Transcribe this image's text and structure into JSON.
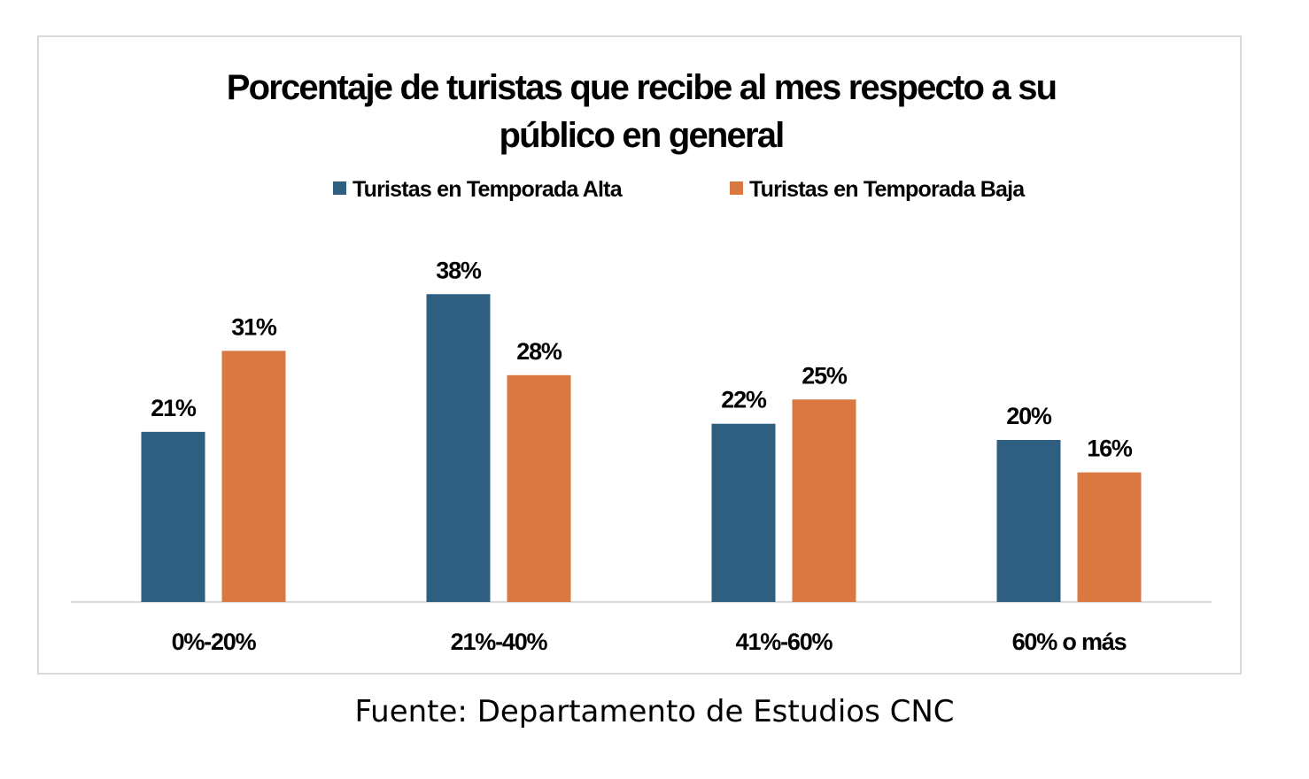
{
  "chart_data": {
    "type": "bar",
    "title_lines": [
      "Porcentaje de turistas que recibe al mes respecto a su",
      "público en general"
    ],
    "categories": [
      "0%-20%",
      "21%-40%",
      "41%-60%",
      "60% o más"
    ],
    "series": [
      {
        "name": "Turistas en Temporada Alta",
        "color": "#2e5f80",
        "values": [
          21,
          38,
          22,
          20
        ],
        "labels": [
          "21%",
          "38%",
          "22%",
          "20%"
        ]
      },
      {
        "name": "Turistas en Temporada Baja",
        "color": "#d97941",
        "values": [
          31,
          28,
          25,
          16
        ],
        "labels": [
          "31%",
          "28%",
          "25%",
          "16%"
        ]
      }
    ],
    "ylim": [
      0,
      40
    ],
    "grid": false,
    "legend_position": "top"
  },
  "source": "Fuente: Departamento de Estudios CNC"
}
